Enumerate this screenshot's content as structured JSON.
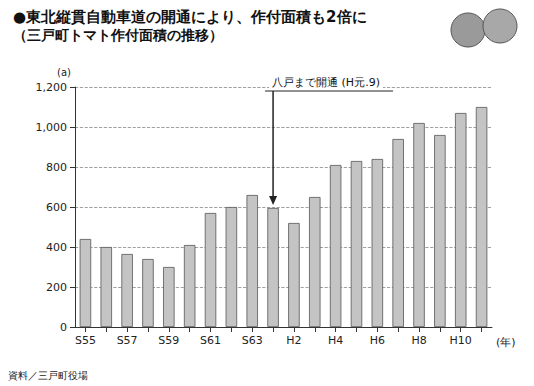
{
  "chart_data": {
    "type": "bar",
    "title": "●東北縦貫自動車道の開通により、作付面積も2倍に",
    "subtitle": "（三戸町トマト作付面積の推移）",
    "y_label": "(a)",
    "x_label": "(年)",
    "source": "資料／三戸町役場",
    "categories": [
      "S55",
      null,
      "S57",
      null,
      "S59",
      null,
      "S61",
      null,
      "S63",
      null,
      "H2",
      null,
      "H4",
      null,
      "H6",
      null,
      "H8",
      null,
      "H10",
      null
    ],
    "values": [
      440,
      400,
      365,
      340,
      300,
      410,
      570,
      600,
      660,
      595,
      520,
      650,
      810,
      830,
      840,
      940,
      1020,
      960,
      1070,
      1100
    ],
    "color": "#c4c4c4",
    "ylim": [
      0,
      1200
    ],
    "yticks": [
      0,
      200,
      400,
      600,
      800,
      {
        "value": 1000,
        "label": "1,000"
      },
      {
        "value": 1200,
        "label": "1,200"
      }
    ],
    "grid": true,
    "annotation": {
      "text": "八戸まで開通 (H元.9)",
      "index": 9
    }
  }
}
